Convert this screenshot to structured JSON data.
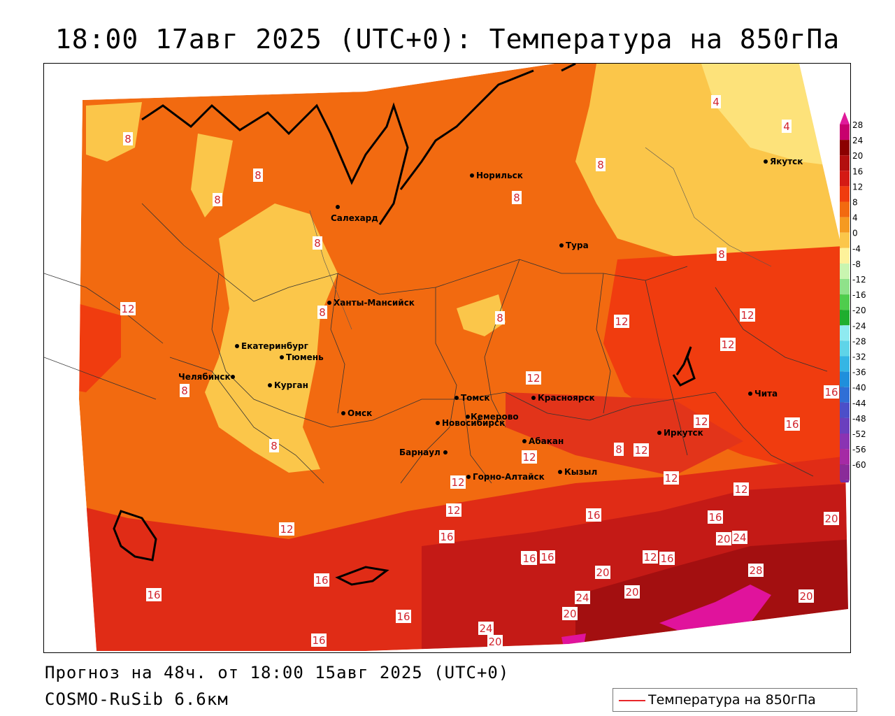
{
  "title": "18:00 17авг 2025 (UTC+0): Температура на 850гПа",
  "footer": {
    "forecast": "Прогноз на 48ч. от 18:00 15авг 2025 (UTC+0)",
    "model": "COSMO-RuSib 6.6км"
  },
  "legend": {
    "label": "Температура на 850гПа",
    "line_color": "#e8262a"
  },
  "colorbar": {
    "labels": [
      "28",
      "24",
      "20",
      "16",
      "12",
      "8",
      "4",
      "0",
      "-4",
      "-8",
      "-12",
      "-16",
      "-20",
      "-24",
      "-28",
      "-32",
      "-36",
      "-40",
      "-44",
      "-48",
      "-52",
      "-56",
      "-60"
    ],
    "colors": [
      "#c8006e",
      "#8b0000",
      "#b30f0f",
      "#d41a14",
      "#f03c0f",
      "#f26a10",
      "#f59a21",
      "#fbc64a",
      "#fdf29a",
      "#c9f5b0",
      "#8fe28a",
      "#4fcd4d",
      "#1fae2e",
      "#8feaf0",
      "#5fd4e8",
      "#35b5e4",
      "#1f8fdc",
      "#2f6fd6",
      "#4c4fc9",
      "#6a3fbe",
      "#8a33b3",
      "#a52aa5",
      "#8a2b99"
    ],
    "tip_top_color": "#e01a9a",
    "tip_bottom_color": "#7a2ea6"
  },
  "cities": [
    {
      "name": "Норильск"
    },
    {
      "name": "Якутск"
    },
    {
      "name": "Салехард"
    },
    {
      "name": "Тура"
    },
    {
      "name": "Ханты-Мансийск"
    },
    {
      "name": "Екатеринбург"
    },
    {
      "name": "Тюмень"
    },
    {
      "name": "Челябинск"
    },
    {
      "name": "Курган"
    },
    {
      "name": "Омск"
    },
    {
      "name": "Томск"
    },
    {
      "name": "Красноярск"
    },
    {
      "name": "Новосибирск"
    },
    {
      "name": "Кемерово"
    },
    {
      "name": "Абакан"
    },
    {
      "name": "Иркутск"
    },
    {
      "name": "Чита"
    },
    {
      "name": "Барнаул"
    },
    {
      "name": "Горно-Алтайск"
    },
    {
      "name": "Кызыл"
    }
  ],
  "isoline_labels": [
    {
      "value": "4"
    },
    {
      "value": "4"
    },
    {
      "value": "8"
    },
    {
      "value": "8"
    },
    {
      "value": "8"
    },
    {
      "value": "8"
    },
    {
      "value": "8"
    },
    {
      "value": "8"
    },
    {
      "value": "8"
    },
    {
      "value": "8"
    },
    {
      "value": "8"
    },
    {
      "value": "8"
    },
    {
      "value": "8"
    },
    {
      "value": "8"
    },
    {
      "value": "12"
    },
    {
      "value": "12"
    },
    {
      "value": "12"
    },
    {
      "value": "12"
    },
    {
      "value": "12"
    },
    {
      "value": "12"
    },
    {
      "value": "12"
    },
    {
      "value": "12"
    },
    {
      "value": "12"
    },
    {
      "value": "12"
    },
    {
      "value": "12"
    },
    {
      "value": "12"
    },
    {
      "value": "12"
    },
    {
      "value": "12"
    },
    {
      "value": "12"
    },
    {
      "value": "16"
    },
    {
      "value": "16"
    },
    {
      "value": "16"
    },
    {
      "value": "16"
    },
    {
      "value": "16"
    },
    {
      "value": "16"
    },
    {
      "value": "16"
    },
    {
      "value": "16"
    },
    {
      "value": "16"
    },
    {
      "value": "16"
    },
    {
      "value": "16"
    },
    {
      "value": "16"
    },
    {
      "value": "20"
    },
    {
      "value": "20"
    },
    {
      "value": "20"
    },
    {
      "value": "20"
    },
    {
      "value": "20"
    },
    {
      "value": "20"
    },
    {
      "value": "20"
    },
    {
      "value": "24"
    },
    {
      "value": "24"
    },
    {
      "value": "24"
    },
    {
      "value": "28"
    }
  ]
}
